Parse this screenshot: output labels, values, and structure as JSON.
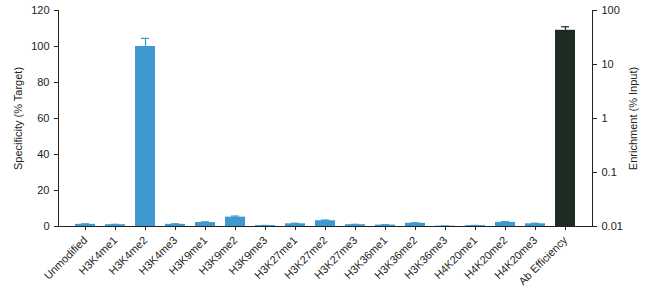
{
  "chart_data": {
    "type": "bar",
    "categories": [
      "Unmodified",
      "H3K4me1",
      "H3K4me2",
      "H3K4me3",
      "H3K9me1",
      "H3K9me2",
      "H3K9me3",
      "H3K27me1",
      "H3K27me2",
      "H3K27me3",
      "H3K36me1",
      "H3K36me2",
      "H3K36me3",
      "H4K20me1",
      "H4K20me2",
      "H4K20me3",
      "Ab Efficiency"
    ],
    "ylabel": "Specificity (% Target)",
    "y2label": "Enrichment (% Input)",
    "ylim": [
      0,
      120
    ],
    "yticks": [
      0,
      20,
      40,
      60,
      80,
      100,
      120
    ],
    "y2lim": [
      0.01,
      100
    ],
    "y2ticks": [
      0.01,
      0.1,
      1,
      10,
      100
    ],
    "log": "y2",
    "series": [
      {
        "color": "#3d9ad1",
        "values": [
          1.2,
          1.0,
          100,
          1.2,
          2.2,
          5.2,
          0.5,
          1.5,
          3.2,
          1.0,
          0.8,
          1.8,
          0.2,
          0.5,
          2.3,
          1.5,
          null
        ],
        "errors": [
          0.3,
          0.2,
          4.5,
          0.3,
          0.4,
          0.6,
          0.1,
          0.3,
          0.4,
          0.2,
          0.2,
          0.3,
          0.1,
          0.1,
          0.4,
          0.3,
          null
        ]
      },
      {
        "axis": "y2",
        "color": "#1e2b23",
        "values": [
          null,
          null,
          null,
          null,
          null,
          null,
          null,
          null,
          null,
          null,
          null,
          null,
          null,
          null,
          null,
          null,
          43
        ],
        "errors": [
          null,
          null,
          null,
          null,
          null,
          null,
          null,
          null,
          null,
          null,
          null,
          null,
          null,
          null,
          null,
          null,
          7
        ]
      }
    ]
  }
}
